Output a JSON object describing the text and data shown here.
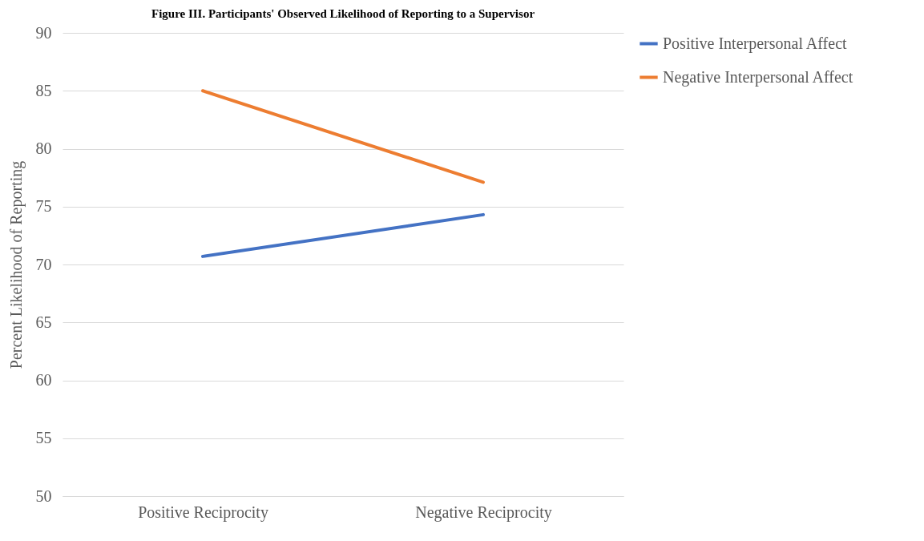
{
  "chart_data": {
    "type": "line",
    "title": "Figure III.  Participants' Observed Likelihood of Reporting to a Supervisor",
    "ylabel": "Percent Likelihood of Reporting",
    "categories": [
      "Positive Reciprocity",
      "Negative Reciprocity"
    ],
    "series": [
      {
        "name": "Positive Interpersonal Affect",
        "color": "#4472c4",
        "values": [
          70.7,
          74.3
        ]
      },
      {
        "name": "Negative Interpersonal Affect",
        "color": "#ed7d31",
        "values": [
          85.0,
          77.1
        ]
      }
    ],
    "ylim": [
      50,
      90
    ],
    "yticks": [
      50,
      55,
      60,
      65,
      70,
      75,
      80,
      85,
      90
    ],
    "grid": "y",
    "legend": "right",
    "marker": "none",
    "line_style": "solid"
  }
}
